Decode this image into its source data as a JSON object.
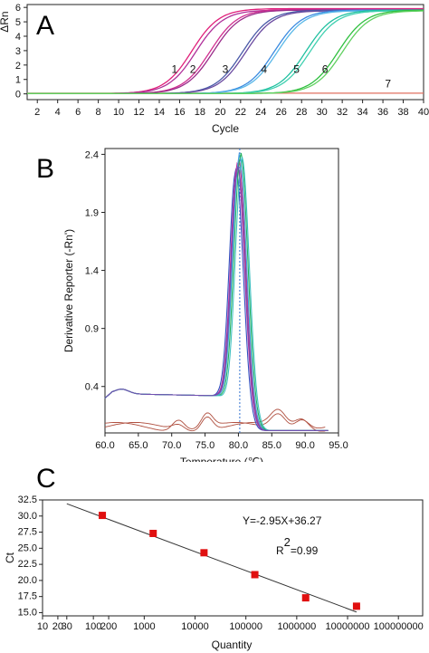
{
  "panels": {
    "a": {
      "letter": "A",
      "chart_data": {
        "type": "line",
        "xlabel": "Cycle",
        "ylabel": "ΔRn",
        "xlim": [
          1,
          40
        ],
        "ylim": [
          -0.4,
          6.2
        ],
        "xticks": [
          2,
          4,
          6,
          8,
          10,
          12,
          14,
          16,
          18,
          20,
          22,
          24,
          26,
          28,
          30,
          32,
          34,
          36,
          38,
          40
        ],
        "yticks": [
          0,
          1,
          2,
          3,
          4,
          5,
          6
        ],
        "baseline_color": "#e07060",
        "curve_labels": [
          {
            "text": "1",
            "x": 15.5,
            "y": 1.7
          },
          {
            "text": "2",
            "x": 17.3,
            "y": 1.7
          },
          {
            "text": "3",
            "x": 20.5,
            "y": 1.7
          },
          {
            "text": "4",
            "x": 24.3,
            "y": 1.7
          },
          {
            "text": "5",
            "x": 27.5,
            "y": 1.7
          },
          {
            "text": "6",
            "x": 30.3,
            "y": 1.7
          },
          {
            "text": "7",
            "x": 36.5,
            "y": 0.7
          }
        ],
        "series": [
          {
            "mid": 17.2,
            "color": "#e0207a",
            "top": 5.9
          },
          {
            "mid": 17.6,
            "color": "#b0309a",
            "top": 5.8
          },
          {
            "mid": 19.0,
            "color": "#d03090",
            "top": 5.85
          },
          {
            "mid": 19.3,
            "color": "#9a2a8a",
            "top": 5.8
          },
          {
            "mid": 22.2,
            "color": "#4a5aa8",
            "top": 5.8
          },
          {
            "mid": 22.5,
            "color": "#6a4aa0",
            "top": 5.75
          },
          {
            "mid": 25.3,
            "color": "#3a8ae0",
            "top": 5.8
          },
          {
            "mid": 25.6,
            "color": "#5ab8e8",
            "top": 5.75
          },
          {
            "mid": 28.4,
            "color": "#20c0a0",
            "top": 5.8
          },
          {
            "mid": 28.8,
            "color": "#40d0b0",
            "top": 5.75
          },
          {
            "mid": 31.6,
            "color": "#30c040",
            "top": 5.8
          },
          {
            "mid": 32.0,
            "color": "#60d060",
            "top": 5.75
          }
        ]
      }
    },
    "b": {
      "letter": "B",
      "chart_data": {
        "type": "line",
        "xlabel": "Temperature (℃)",
        "ylabel": "Derivative Reporter (-Rn')",
        "xlim": [
          60,
          95
        ],
        "ylim": [
          0.0,
          2.45
        ],
        "xticks": [
          60.0,
          65.0,
          70.0,
          75.0,
          80.0,
          85.0,
          90.0,
          95.0
        ],
        "yticks": [
          0.4,
          0.9,
          1.4,
          1.9,
          2.4
        ],
        "xtick_labels": [
          "60.0",
          "65.0",
          "70.0",
          "75.0",
          "80.0",
          "85.0",
          "90.0",
          "95.0"
        ],
        "ytick_labels": [
          "0.4",
          "0.9",
          "1.4",
          "1.9",
          "2.4"
        ],
        "melt_line_x": 80.2,
        "series": [
          {
            "peak": 79.6,
            "height": 2.28,
            "color": "#3050c0"
          },
          {
            "peak": 79.8,
            "height": 2.32,
            "color": "#c030a0"
          },
          {
            "peak": 80.0,
            "height": 2.36,
            "color": "#e03080"
          },
          {
            "peak": 80.1,
            "height": 2.4,
            "color": "#40a0e0"
          },
          {
            "peak": 80.3,
            "height": 2.42,
            "color": "#20b060"
          },
          {
            "peak": 80.5,
            "height": 2.38,
            "color": "#40c0c0"
          },
          {
            "peak": 79.9,
            "height": 2.3,
            "color": "#7050b0"
          }
        ],
        "noise_color": "#b05040"
      }
    },
    "c": {
      "letter": "C",
      "chart_data": {
        "type": "scatter",
        "xlabel": "Quantity",
        "ylabel": "Ct",
        "xscale": "log",
        "xlim": [
          10,
          300000000
        ],
        "ylim": [
          14.5,
          32.5
        ],
        "xticks": [
          10,
          20,
          30,
          100,
          200,
          1000,
          10000,
          100000,
          1000000,
          10000000,
          100000000
        ],
        "xtick_labels": [
          "10",
          "20",
          "30",
          "100",
          "200",
          "1000",
          "10000",
          "100000",
          "1000000",
          "10000000",
          "100000000"
        ],
        "yticks": [
          15.0,
          17.5,
          20.0,
          22.5,
          25.0,
          27.5,
          30.0,
          32.5
        ],
        "ytick_labels": [
          "15.0",
          "17.5",
          "20.0",
          "22.5",
          "25.0",
          "27.5",
          "30.0",
          "32.5"
        ],
        "points": [
          {
            "x": 150,
            "y": 30.1
          },
          {
            "x": 1500,
            "y": 27.3
          },
          {
            "x": 15000,
            "y": 24.3
          },
          {
            "x": 150000,
            "y": 20.9
          },
          {
            "x": 1500000,
            "y": 17.3
          },
          {
            "x": 15000000,
            "y": 16.0
          }
        ],
        "fit": {
          "slope": -2.95,
          "intercept": 36.27
        },
        "equation": "Y=-2.95X+36.27",
        "r2_label": "R",
        "r2_sup": "2",
        "r2_value": "=0.99",
        "point_color": "#e01010"
      }
    }
  }
}
